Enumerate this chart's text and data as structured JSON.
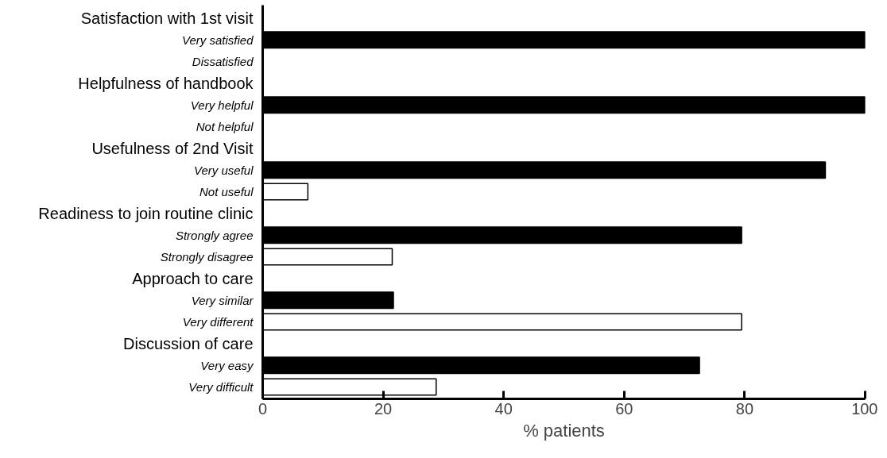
{
  "chart_data": {
    "type": "bar",
    "orientation": "horizontal",
    "xlabel": "% patients",
    "categories": [
      "Satisfaction with 1st visit",
      "Very satisfied",
      "Dissatisfied",
      "Helpfulness of handbook",
      "Very helpful",
      "Not helpful",
      "Usefulness of 2nd Visit",
      "Very useful",
      "Not useful",
      "Readiness to join routine clinic",
      "Strongly agree",
      "Strongly disagree",
      "Approach to care",
      "Very similar",
      "Very different",
      "Discussion of care",
      "Very easy",
      "Very difficult"
    ],
    "values": [
      null,
      100,
      0,
      null,
      100,
      0,
      null,
      93.4,
      7.5,
      null,
      79.5,
      21.5,
      null,
      21.7,
      79.5,
      null,
      72.5,
      28.8
    ],
    "colors": [
      null,
      "#000000",
      "#ffffff",
      null,
      "#000000",
      "#ffffff",
      null,
      "#000000",
      "#ffffff",
      null,
      "#000000",
      "#ffffff",
      null,
      "#000000",
      "#ffffff",
      null,
      "#000000",
      "#ffffff"
    ],
    "xlim": [
      0,
      100
    ],
    "xticks": [
      0,
      20,
      40,
      60,
      80,
      100
    ],
    "grid": false
  }
}
